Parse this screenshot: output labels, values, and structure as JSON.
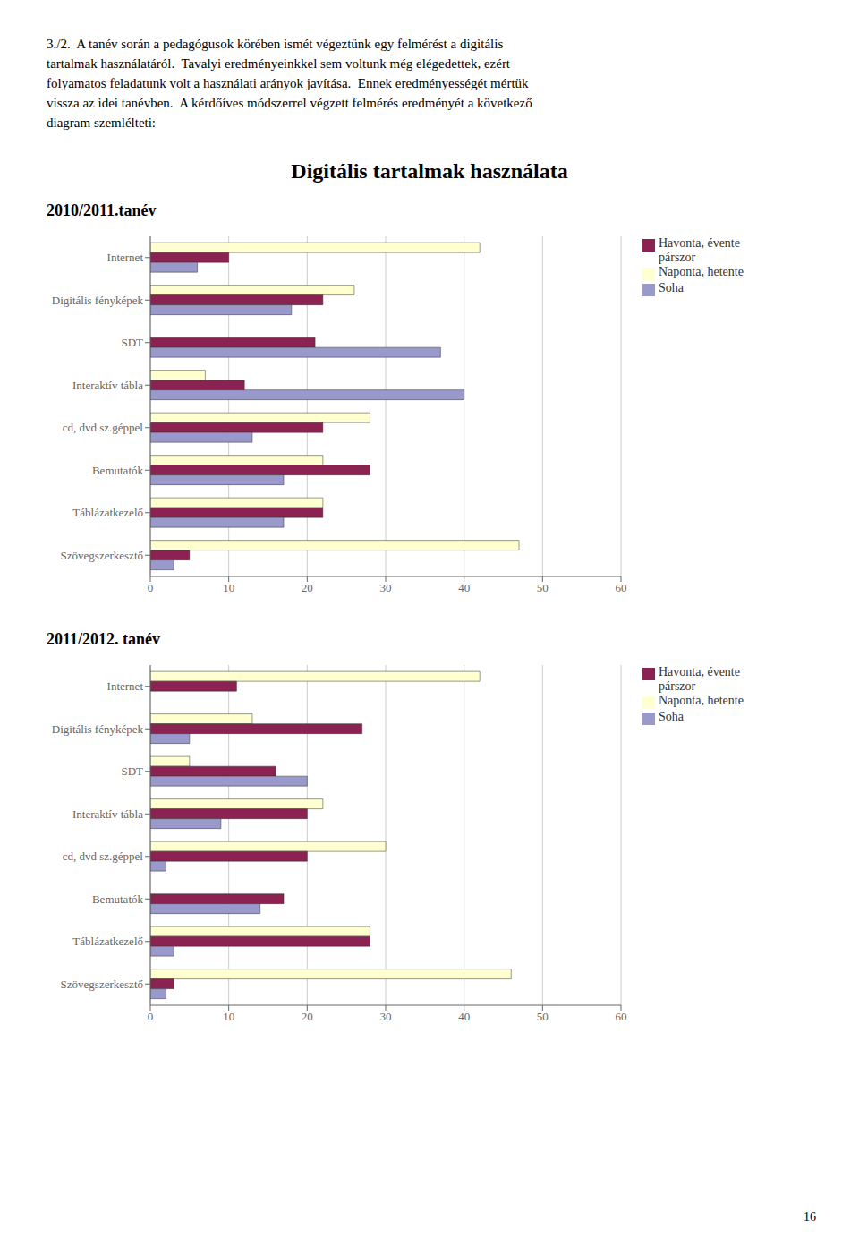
{
  "title": "Digitális tartalmak használata",
  "annotations": [
    "3./2.  A tanév során a pedagógusok körében ismét végeztünk egy felmérést a digitális",
    "tartalmak használatáról.  Tavalyi eredményeinkkel sem voltunk még elégedettek, ezért",
    "folyamatos feladatunk volt a használati arányok javítása.  Ennek eredményességét mértük",
    "vissza az idei tanévben.  A kérdőíves módszerrel végzett felmérés eredményét a következő",
    "diagram szemlélteti:",
    "16"
  ],
  "chart_data": [
    {
      "type": "bar",
      "orientation": "horizontal",
      "subtitle": "2010/2011.tanév",
      "categories": [
        "Internet",
        "Digitális fényképek",
        "SDT",
        "Interaktív tábla",
        "cd, dvd sz.géppel",
        "Bemutatók",
        "Táblázatkezelő",
        "Szövegszerkesztő"
      ],
      "series": [
        {
          "name": "Naponta, hetente",
          "color": "#FFFFD0",
          "values": [
            42,
            26,
            0,
            7,
            28,
            22,
            22,
            47
          ]
        },
        {
          "name": "Havonta, évente\npárszor",
          "color": "#8B2252",
          "values": [
            10,
            22,
            21,
            12,
            22,
            28,
            22,
            5
          ]
        },
        {
          "name": "Soha",
          "color": "#9999CC",
          "values": [
            6,
            18,
            37,
            40,
            13,
            17,
            17,
            3
          ]
        }
      ],
      "xlim": [
        0,
        60
      ],
      "xticks": [
        0,
        10,
        20,
        30,
        40,
        50,
        60
      ],
      "grid": true,
      "legend": "upper right"
    },
    {
      "type": "bar",
      "orientation": "horizontal",
      "subtitle": "2011/2012. tanév",
      "categories": [
        "Internet",
        "Digitális fényképek",
        "SDT",
        "Interaktív tábla",
        "cd, dvd sz.géppel",
        "Bemutatók",
        "Táblázatkezelő",
        "Szövegszerkesztő"
      ],
      "series": [
        {
          "name": "Naponta, hetente",
          "color": "#FFFFD0",
          "values": [
            42,
            13,
            5,
            22,
            30,
            0,
            28,
            46
          ]
        },
        {
          "name": "Havonta, évente\npárszor",
          "color": "#8B2252",
          "values": [
            11,
            27,
            16,
            20,
            20,
            17,
            28,
            3
          ]
        },
        {
          "name": "Soha",
          "color": "#9999CC",
          "values": [
            0,
            5,
            20,
            9,
            2,
            14,
            3,
            2
          ]
        }
      ],
      "xlim": [
        0,
        60
      ],
      "xticks": [
        0,
        10,
        20,
        30,
        40,
        50,
        60
      ],
      "grid": true,
      "legend": "upper right"
    }
  ]
}
